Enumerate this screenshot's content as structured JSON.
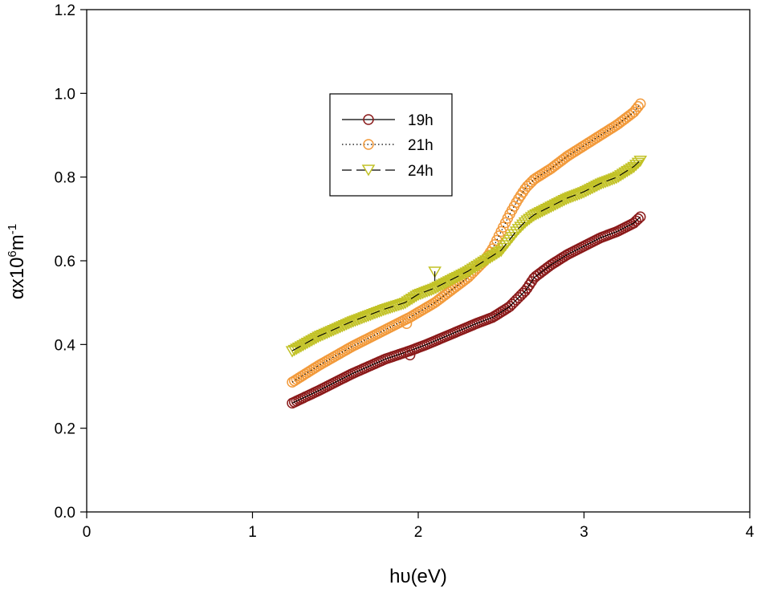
{
  "chart_data": {
    "type": "scatter",
    "title": "",
    "xlabel": "hυ(eV)",
    "ylabel": {
      "base": "αx10",
      "exp1": "6",
      "mid": "m",
      "exp2": "-1"
    },
    "xlim": [
      0,
      4
    ],
    "ylim": [
      0,
      1.2
    ],
    "xticks": [
      0,
      1,
      2,
      3,
      4
    ],
    "yticks": [
      0.0,
      0.2,
      0.4,
      0.6,
      0.8,
      1.0,
      1.2
    ],
    "xtick_labels": [
      "0",
      "1",
      "2",
      "3",
      "4"
    ],
    "ytick_labels": [
      "0.0",
      "0.2",
      "0.4",
      "0.6",
      "0.8",
      "1.0",
      "1.2"
    ],
    "grid": false,
    "legend_position": "upper-center",
    "series": [
      {
        "name": "19h",
        "marker": "circle",
        "line_style": "solid",
        "color": "#8b1a1a",
        "x": [
          1.24,
          1.4,
          1.6,
          1.8,
          1.95,
          2.05,
          2.2,
          2.35,
          2.45,
          2.55,
          2.6,
          2.65,
          2.7,
          2.8,
          2.9,
          3.0,
          3.1,
          3.2,
          3.3,
          3.34
        ],
        "y": [
          0.26,
          0.29,
          0.33,
          0.365,
          0.385,
          0.4,
          0.425,
          0.45,
          0.465,
          0.49,
          0.51,
          0.53,
          0.56,
          0.59,
          0.615,
          0.635,
          0.655,
          0.67,
          0.69,
          0.705
        ]
      },
      {
        "name": "21h",
        "marker": "circle",
        "line_style": "dotted",
        "color": "#f29a3b",
        "x": [
          1.24,
          1.4,
          1.6,
          1.8,
          1.95,
          2.1,
          2.2,
          2.3,
          2.4,
          2.45,
          2.5,
          2.55,
          2.6,
          2.65,
          2.7,
          2.8,
          2.9,
          3.0,
          3.1,
          3.2,
          3.3,
          3.34
        ],
        "y": [
          0.31,
          0.35,
          0.395,
          0.435,
          0.465,
          0.5,
          0.53,
          0.56,
          0.6,
          0.63,
          0.67,
          0.71,
          0.745,
          0.775,
          0.795,
          0.82,
          0.85,
          0.875,
          0.9,
          0.925,
          0.955,
          0.975
        ]
      },
      {
        "name": "24h",
        "marker": "triangle-down",
        "line_style": "dashed",
        "color": "#c2c226",
        "x": [
          1.24,
          1.4,
          1.6,
          1.8,
          1.92,
          2.0,
          2.1,
          2.2,
          2.3,
          2.4,
          2.5,
          2.55,
          2.6,
          2.65,
          2.7,
          2.8,
          2.9,
          3.0,
          3.1,
          3.2,
          3.3,
          3.34
        ],
        "y": [
          0.385,
          0.42,
          0.455,
          0.485,
          0.5,
          0.52,
          0.535,
          0.555,
          0.575,
          0.6,
          0.625,
          0.65,
          0.675,
          0.695,
          0.71,
          0.73,
          0.75,
          0.765,
          0.785,
          0.8,
          0.825,
          0.84
        ]
      }
    ],
    "outliers": [
      {
        "series": "19h",
        "x": 1.95,
        "y": 0.375
      },
      {
        "series": "21h",
        "x": 1.93,
        "y": 0.45
      },
      {
        "series": "24h",
        "x": 2.1,
        "y": 0.575
      }
    ]
  }
}
